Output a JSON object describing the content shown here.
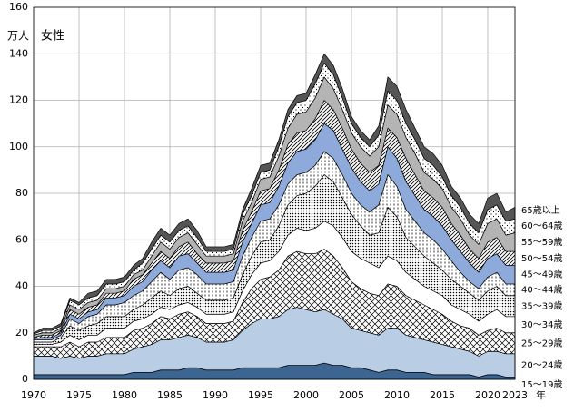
{
  "chart_data": {
    "type": "stacked-area",
    "title": "女性",
    "y_unit": "万人",
    "x_unit": "年",
    "x": [
      1970,
      1971,
      1972,
      1973,
      1974,
      1975,
      1976,
      1977,
      1978,
      1979,
      1980,
      1981,
      1982,
      1983,
      1984,
      1985,
      1986,
      1987,
      1988,
      1989,
      1990,
      1991,
      1992,
      1993,
      1994,
      1995,
      1996,
      1997,
      1998,
      1999,
      2000,
      2001,
      2002,
      2003,
      2004,
      2005,
      2006,
      2007,
      2008,
      2009,
      2010,
      2011,
      2012,
      2013,
      2014,
      2015,
      2016,
      2017,
      2018,
      2019,
      2020,
      2021,
      2022,
      2023
    ],
    "xlim": [
      1970,
      2023
    ],
    "xticks": [
      1970,
      1975,
      1980,
      1985,
      1990,
      1995,
      2000,
      2005,
      2010,
      2015,
      2020,
      2023
    ],
    "ylim": [
      0,
      160
    ],
    "yticks": [
      0,
      20,
      40,
      60,
      80,
      100,
      120,
      140,
      160
    ],
    "grid": true,
    "series": [
      {
        "name": "15～19歳",
        "color": "#3d6592",
        "values": [
          2,
          2,
          2,
          2,
          2,
          2,
          2,
          2,
          2,
          2,
          2,
          3,
          3,
          3,
          4,
          4,
          4,
          5,
          5,
          4,
          4,
          4,
          4,
          5,
          5,
          5,
          5,
          5,
          6,
          6,
          6,
          6,
          7,
          6,
          6,
          5,
          5,
          4,
          3,
          4,
          4,
          3,
          3,
          3,
          2,
          2,
          2,
          2,
          2,
          1,
          2,
          2,
          1,
          1
        ]
      },
      {
        "name": "20～24歳",
        "color": "#b9cde5",
        "values": [
          8,
          8,
          8,
          7,
          8,
          7,
          8,
          8,
          9,
          9,
          9,
          10,
          11,
          12,
          13,
          13,
          14,
          14,
          13,
          12,
          12,
          12,
          13,
          16,
          19,
          21,
          21,
          22,
          24,
          25,
          24,
          23,
          23,
          22,
          20,
          17,
          16,
          16,
          16,
          18,
          18,
          16,
          15,
          14,
          14,
          13,
          12,
          11,
          10,
          9,
          10,
          10,
          10,
          10
        ]
      },
      {
        "name": "25～29歳",
        "color": "#ffffff",
        "pattern": "crosshatch",
        "values": [
          4,
          4,
          4,
          5,
          6,
          5,
          6,
          6,
          7,
          7,
          7,
          8,
          8,
          9,
          10,
          9,
          10,
          10,
          9,
          8,
          8,
          8,
          8,
          12,
          15,
          17,
          18,
          20,
          23,
          24,
          24,
          25,
          26,
          25,
          22,
          20,
          18,
          17,
          17,
          19,
          18,
          17,
          16,
          15,
          14,
          13,
          11,
          10,
          10,
          9,
          9,
          10,
          9,
          9
        ]
      },
      {
        "name": "30～34歳",
        "color": "#ffffff",
        "values": [
          1,
          1,
          1,
          2,
          3,
          3,
          3,
          3,
          4,
          4,
          4,
          4,
          4,
          4,
          4,
          4,
          4,
          4,
          4,
          4,
          4,
          4,
          4,
          5,
          6,
          7,
          7,
          8,
          9,
          10,
          10,
          11,
          12,
          13,
          13,
          13,
          13,
          13,
          12,
          12,
          11,
          10,
          9,
          8,
          8,
          8,
          7,
          7,
          6,
          6,
          7,
          8,
          7,
          7
        ]
      },
      {
        "name": "35～39歳",
        "color": "#ffffff",
        "pattern": "dots",
        "values": [
          1,
          1,
          1,
          2,
          4,
          4,
          4,
          5,
          5,
          5,
          5,
          5,
          6,
          7,
          7,
          6,
          7,
          7,
          6,
          6,
          6,
          6,
          6,
          7,
          8,
          9,
          9,
          11,
          13,
          14,
          16,
          18,
          20,
          19,
          17,
          16,
          14,
          12,
          15,
          21,
          19,
          15,
          14,
          13,
          12,
          11,
          11,
          10,
          9,
          9,
          10,
          10,
          9,
          9
        ]
      },
      {
        "name": "40～44歳",
        "color": "#ffffff",
        "pattern": "vdash",
        "values": [
          1,
          1,
          1,
          1,
          3,
          3,
          4,
          4,
          5,
          5,
          6,
          6,
          6,
          7,
          8,
          7,
          8,
          8,
          8,
          7,
          7,
          7,
          7,
          8,
          8,
          9,
          9,
          9,
          9,
          9,
          9,
          9,
          10,
          10,
          10,
          9,
          9,
          10,
          12,
          14,
          13,
          12,
          11,
          10,
          10,
          9,
          8,
          6,
          5,
          5,
          6,
          6,
          5,
          5
        ]
      },
      {
        "name": "45～49歳",
        "color": "#8eaadb",
        "values": [
          0.5,
          1,
          1,
          1,
          2,
          2,
          2,
          2,
          3,
          3,
          3,
          4,
          4,
          5,
          5,
          5,
          6,
          6,
          5,
          5,
          5,
          5,
          5,
          6,
          6,
          7,
          7,
          8,
          9,
          10,
          10,
          11,
          12,
          12,
          11,
          11,
          10,
          9,
          9,
          12,
          12,
          12,
          11,
          10,
          10,
          10,
          9,
          9,
          8,
          7,
          8,
          8,
          8,
          8
        ]
      },
      {
        "name": "50～54歳",
        "color": "#ffffff",
        "pattern": "diagonal",
        "values": [
          0.5,
          1,
          1,
          1,
          2,
          2,
          2,
          2,
          2,
          2,
          2,
          3,
          3,
          3,
          4,
          4,
          4,
          5,
          4,
          4,
          4,
          4,
          4,
          5,
          5,
          6,
          6,
          7,
          8,
          8,
          8,
          9,
          10,
          9,
          9,
          8,
          8,
          8,
          8,
          8,
          9,
          10,
          9,
          8,
          8,
          8,
          7,
          7,
          6,
          6,
          7,
          7,
          6,
          6
        ]
      },
      {
        "name": "55～59歳",
        "color": "#b4b4b4",
        "values": [
          1,
          1,
          1,
          1,
          2,
          2,
          2,
          2,
          2,
          2,
          2,
          2,
          2,
          3,
          4,
          4,
          4,
          4,
          4,
          3,
          3,
          3,
          3,
          4,
          4,
          5,
          5,
          6,
          7,
          8,
          8,
          9,
          10,
          9,
          8,
          7,
          7,
          7,
          8,
          10,
          10,
          9,
          9,
          8,
          8,
          8,
          7,
          7,
          6,
          6,
          8,
          8,
          7,
          8
        ]
      },
      {
        "name": "60～64歳",
        "color": "#ffffff",
        "pattern": "sparse-dots",
        "values": [
          0.5,
          1,
          1,
          1,
          2,
          2,
          2,
          2,
          2,
          2,
          2,
          2,
          3,
          3,
          3,
          3,
          3,
          3,
          3,
          2,
          2,
          2,
          2,
          3,
          3,
          3,
          3,
          4,
          5,
          5,
          5,
          6,
          6,
          6,
          5,
          4,
          4,
          4,
          5,
          6,
          6,
          6,
          6,
          6,
          6,
          5,
          5,
          5,
          5,
          5,
          6,
          6,
          6,
          6
        ]
      },
      {
        "name": "65歳以上",
        "color": "#555555",
        "values": [
          0.5,
          1,
          1,
          1,
          1,
          1,
          2,
          2,
          2,
          2,
          2,
          2,
          2,
          3,
          3,
          3,
          3,
          3,
          3,
          2,
          2,
          2,
          2,
          2,
          3,
          3,
          3,
          3,
          3,
          3,
          3,
          4,
          4,
          4,
          4,
          3,
          3,
          3,
          4,
          6,
          6,
          6,
          5,
          5,
          5,
          5,
          4,
          4,
          4,
          4,
          5,
          5,
          4,
          5
        ]
      }
    ]
  }
}
